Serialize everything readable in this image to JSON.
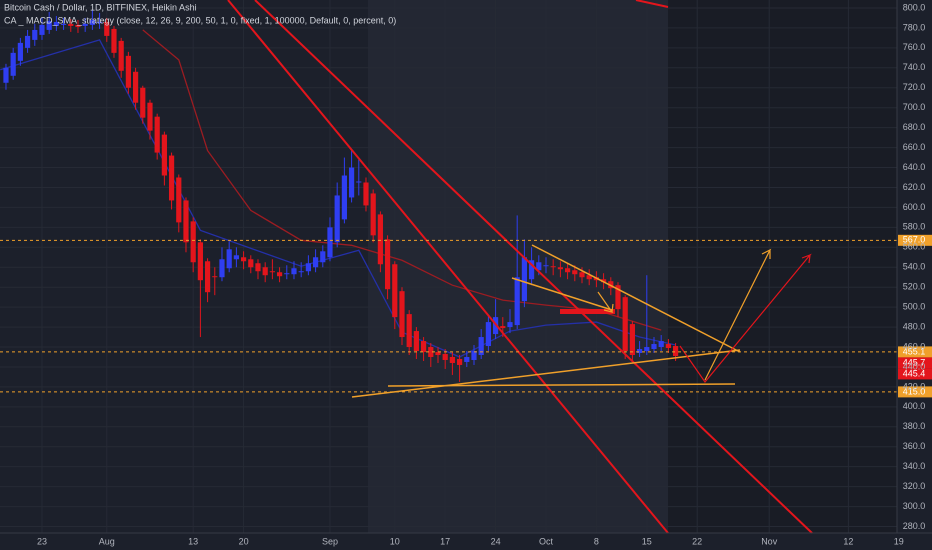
{
  "chart_data": {
    "type": "candlestick",
    "title": "Bitcoin Cash / Dollar, 1D, BITFINEX, Heikin Ashi",
    "subtitle": "CA _ MACD_SMA_strategy (close, 12, 26, 9, 200, 50, 1, 0, fixed, 1, 100000, Default, 0, percent, 0)",
    "up_color": "#2f3ef2",
    "down_color": "#e3151c",
    "grid": true,
    "xlim": [
      -5.83,
      118.75
    ],
    "ylim": [
      273.5,
      808
    ],
    "xticks": [
      {
        "value": 0,
        "label": "23"
      },
      {
        "value": 9,
        "label": "Aug"
      },
      {
        "value": 21,
        "label": "13"
      },
      {
        "value": 28,
        "label": "20"
      },
      {
        "value": 40,
        "label": "Sep"
      },
      {
        "value": 49,
        "label": "10"
      },
      {
        "value": 56,
        "label": "17"
      },
      {
        "value": 63,
        "label": "24"
      },
      {
        "value": 70,
        "label": "Oct"
      },
      {
        "value": 77,
        "label": "8"
      },
      {
        "value": 84,
        "label": "15"
      },
      {
        "value": 91,
        "label": "22"
      },
      {
        "value": 101,
        "label": "Nov"
      },
      {
        "value": 112,
        "label": "12"
      },
      {
        "value": 119,
        "label": "19"
      }
    ],
    "yticks": [
      {
        "value": 280,
        "label": "280.0"
      },
      {
        "value": 300,
        "label": "300.0"
      },
      {
        "value": 320,
        "label": "320.0"
      },
      {
        "value": 340,
        "label": "340.0"
      },
      {
        "value": 360,
        "label": "360.0"
      },
      {
        "value": 380,
        "label": "380.0"
      },
      {
        "value": 400,
        "label": "400.0"
      },
      {
        "value": 420,
        "label": "420.0"
      },
      {
        "value": 440,
        "label": "440.0"
      },
      {
        "value": 460,
        "label": "460.0"
      },
      {
        "value": 480,
        "label": "480.0"
      },
      {
        "value": 500,
        "label": "500.0"
      },
      {
        "value": 520,
        "label": "520.0"
      },
      {
        "value": 540,
        "label": "540.0"
      },
      {
        "value": 560,
        "label": "560.0"
      },
      {
        "value": 580,
        "label": "580.0"
      },
      {
        "value": 600,
        "label": "600.0"
      },
      {
        "value": 620,
        "label": "620.0"
      },
      {
        "value": 640,
        "label": "640.0"
      },
      {
        "value": 660,
        "label": "660.0"
      },
      {
        "value": 680,
        "label": "680.0"
      },
      {
        "value": 700,
        "label": "700.0"
      },
      {
        "value": 720,
        "label": "720.0"
      },
      {
        "value": 740,
        "label": "740.0"
      },
      {
        "value": 760,
        "label": "760.0"
      },
      {
        "value": 780,
        "label": "780.0"
      },
      {
        "value": 800,
        "label": "800.0"
      }
    ],
    "x": [
      -5,
      -4,
      -3,
      -2,
      -1,
      0,
      1,
      2,
      3,
      4,
      5,
      6,
      7,
      8,
      9,
      10,
      11,
      12,
      13,
      14,
      15,
      16,
      17,
      18,
      19,
      20,
      21,
      22,
      23,
      24,
      25,
      26,
      27,
      28,
      29,
      30,
      31,
      32,
      33,
      34,
      35,
      36,
      37,
      38,
      39,
      40,
      41,
      42,
      43,
      44,
      45,
      46,
      47,
      48,
      49,
      50,
      51,
      52,
      53,
      54,
      55,
      56,
      57,
      58,
      59,
      60,
      61,
      62,
      63,
      64,
      65,
      66,
      67,
      68,
      69,
      70,
      71,
      72,
      73,
      74,
      75,
      76,
      77,
      78,
      79,
      80,
      81,
      82,
      83,
      84,
      85,
      86,
      87,
      88
    ],
    "open": [
      725,
      732,
      747,
      760,
      768,
      773,
      778,
      782,
      784,
      784,
      783,
      782,
      783,
      785,
      786,
      779,
      767,
      752,
      736,
      720,
      705,
      691,
      673,
      652,
      630,
      607,
      586,
      565,
      546,
      531,
      530,
      539,
      548,
      550,
      548,
      544,
      540,
      536,
      535,
      533,
      533,
      536,
      536,
      540,
      545,
      550,
      565,
      588,
      610,
      625,
      625,
      614,
      593,
      568,
      543,
      516,
      493,
      476,
      466,
      460,
      455,
      453,
      450,
      448,
      445,
      447,
      452,
      461,
      473,
      481,
      480,
      482,
      506,
      528,
      537,
      541,
      541,
      540,
      539,
      537,
      535,
      532,
      530,
      528,
      526,
      522,
      510,
      483,
      454,
      456,
      458,
      460,
      463,
      461
    ],
    "high": [
      744,
      760,
      770,
      778,
      784,
      790,
      796,
      792,
      790,
      789,
      788,
      790,
      798,
      795,
      790,
      782,
      770,
      756,
      740,
      722,
      708,
      694,
      676,
      655,
      633,
      610,
      590,
      568,
      549,
      540,
      560,
      566,
      560,
      556,
      552,
      548,
      545,
      548,
      540,
      542,
      546,
      545,
      552,
      558,
      562,
      590,
      625,
      650,
      658,
      648,
      630,
      618,
      596,
      572,
      546,
      520,
      497,
      480,
      470,
      464,
      460,
      458,
      455,
      452,
      456,
      462,
      478,
      492,
      508,
      490,
      498,
      592,
      568,
      560,
      552,
      550,
      548,
      546,
      544,
      542,
      540,
      538,
      536,
      534,
      530,
      525,
      512,
      486,
      466,
      532,
      470,
      472,
      468,
      464
    ],
    "low": [
      718,
      728,
      742,
      755,
      762,
      768,
      774,
      777,
      778,
      776,
      775,
      776,
      778,
      779,
      766,
      750,
      730,
      714,
      698,
      684,
      668,
      648,
      622,
      598,
      575,
      555,
      535,
      470,
      505,
      512,
      526,
      535,
      540,
      538,
      534,
      528,
      525,
      528,
      525,
      528,
      528,
      530,
      532,
      535,
      540,
      546,
      560,
      584,
      605,
      612,
      596,
      565,
      535,
      508,
      478,
      462,
      452,
      448,
      446,
      440,
      444,
      438,
      432,
      425,
      440,
      442,
      448,
      456,
      468,
      470,
      474,
      478,
      500,
      522,
      532,
      534,
      532,
      530,
      528,
      526,
      524,
      522,
      520,
      518,
      512,
      490,
      448,
      446,
      450,
      452,
      454,
      456,
      454,
      446
    ],
    "close": [
      740,
      755,
      765,
      772,
      778,
      783,
      787,
      786,
      784,
      782,
      781,
      784,
      788,
      786,
      772,
      755,
      737,
      720,
      705,
      690,
      677,
      655,
      632,
      607,
      585,
      565,
      545,
      527,
      515,
      530,
      548,
      558,
      552,
      546,
      540,
      536,
      532,
      535,
      531,
      534,
      539,
      536,
      544,
      550,
      556,
      580,
      612,
      632,
      640,
      626,
      602,
      572,
      543,
      518,
      490,
      470,
      460,
      456,
      455,
      450,
      452,
      447,
      444,
      442,
      450,
      456,
      470,
      485,
      490,
      479,
      485,
      530,
      550,
      547,
      545,
      542,
      540,
      538,
      535,
      533,
      530,
      528,
      527,
      525,
      519,
      498,
      456,
      452,
      458,
      460,
      463,
      466,
      459,
      451
    ],
    "overlays": [
      {
        "color": "#2430a8",
        "x": [
          -5.8,
          8,
          22,
          36,
          44,
          50,
          58,
          65,
          70,
          77,
          83,
          88
        ],
        "values": [
          738,
          768,
          577,
          541,
          557,
          475,
          450,
          476,
          482,
          485,
          470,
          462
        ]
      },
      {
        "color": "#9c1c22",
        "x": [
          14,
          19,
          23,
          29,
          36,
          43,
          50,
          57,
          64,
          70,
          77,
          86
        ],
        "values": [
          778,
          748,
          657,
          597,
          567,
          562,
          547,
          522,
          507,
          502,
          497,
          477
        ]
      }
    ],
    "price_lines": [
      {
        "value": 567.0,
        "label": "567.0",
        "color": "#f0a02a",
        "dashed": true
      },
      {
        "value": 455.1,
        "label": "455.1",
        "color": "#f0a02a",
        "dashed": true
      },
      {
        "value": 445.7,
        "label": "445.7",
        "color": "#e3151c",
        "dashed": false
      },
      {
        "value": 445.4,
        "label": "445.4",
        "color": "#e3151c",
        "dashed": false
      },
      {
        "value": 415.0,
        "label": "415.0",
        "color": "#f0a02a",
        "dashed": true
      }
    ]
  }
}
